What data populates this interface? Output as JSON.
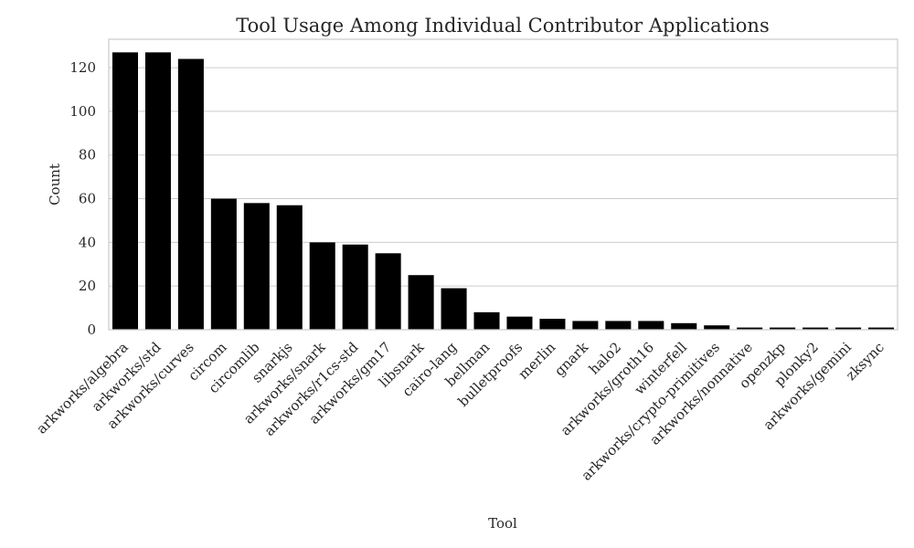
{
  "chart_data": {
    "type": "bar",
    "title": "Tool Usage Among Individual Contributor Applications",
    "xlabel": "Tool",
    "ylabel": "Count",
    "ylim": [
      0,
      133
    ],
    "yticks": [
      0,
      20,
      40,
      60,
      80,
      100,
      120
    ],
    "grid": true,
    "bar_color": "#000000",
    "categories": [
      "arkworks/algebra",
      "arkworks/std",
      "arkworks/curves",
      "circom",
      "circomlib",
      "snarkjs",
      "arkworks/snark",
      "arkworks/r1cs-std",
      "arkworks/gm17",
      "libsnark",
      "cairo-lang",
      "bellman",
      "bulletproofs",
      "merlin",
      "gnark",
      "halo2",
      "arkworks/groth16",
      "winterfell",
      "arkworks/crypto-primitives",
      "arkworks/nonnative",
      "openzkp",
      "plonky2",
      "arkworks/gemini",
      "zksync"
    ],
    "values": [
      127,
      127,
      124,
      60,
      58,
      57,
      40,
      39,
      35,
      25,
      19,
      8,
      6,
      5,
      4,
      4,
      4,
      3,
      2,
      1,
      1,
      1,
      1,
      1
    ]
  }
}
